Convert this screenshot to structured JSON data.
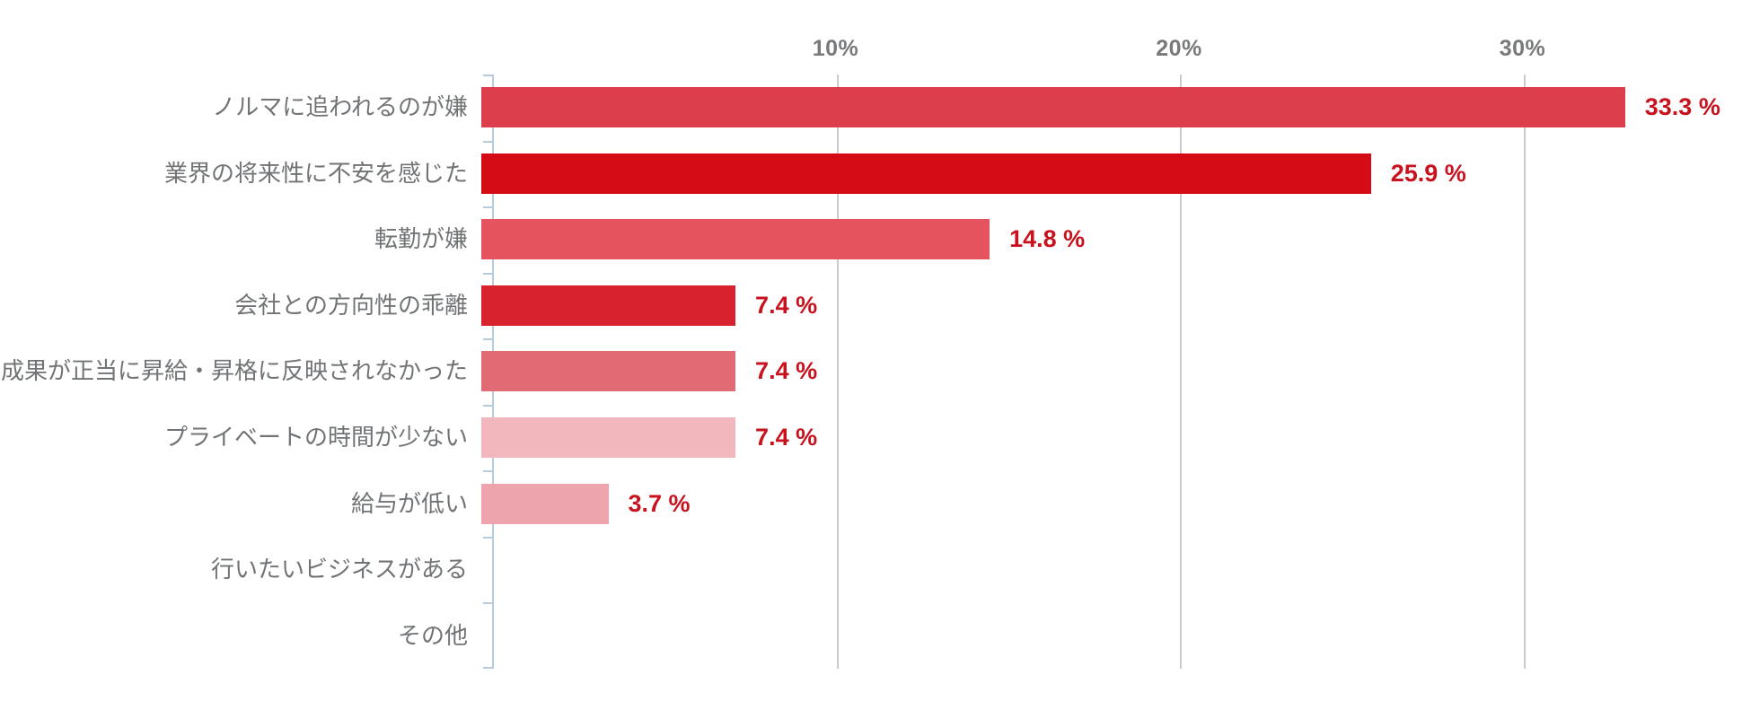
{
  "chart_data": {
    "type": "bar",
    "orientation": "horizontal",
    "title": "",
    "xlabel": "",
    "ylabel": "",
    "categories": [
      "ノルマに追われるのが嫌",
      "業界の将来性に不安を感じた",
      "転勤が嫌",
      "会社との方向性の乖離",
      "成果が正当に昇給・昇格に反映されなかった",
      "プライベートの時間が少ない",
      "給与が低い",
      "行いたいビジネスがある",
      "その他"
    ],
    "values": [
      33.3,
      25.9,
      14.8,
      7.4,
      7.4,
      7.4,
      3.7,
      0,
      0
    ],
    "value_labels": [
      "33.3 %",
      "25.9 %",
      "14.8 %",
      "7.4 %",
      "7.4 %",
      "7.4 %",
      "3.7 %",
      "",
      ""
    ],
    "bar_colors": [
      "#dc3f4b",
      "#d50c16",
      "#e5545e",
      "#d8232e",
      "#e06b75",
      "#f2b7bd",
      "#eda4ac",
      "",
      ""
    ],
    "x_ticks": [
      {
        "value": 10,
        "label": "10%"
      },
      {
        "value": 20,
        "label": "20%"
      },
      {
        "value": 30,
        "label": "30%"
      }
    ],
    "xlim": [
      0,
      36.6
    ],
    "grid": true,
    "legend": false,
    "colors": {
      "value_label": "#c8121e",
      "tick_label": "#77797b",
      "category_label": "#717476",
      "axis_line": "#b8cbdc",
      "gridline": "#cccccc",
      "background": "#ffffff"
    }
  }
}
